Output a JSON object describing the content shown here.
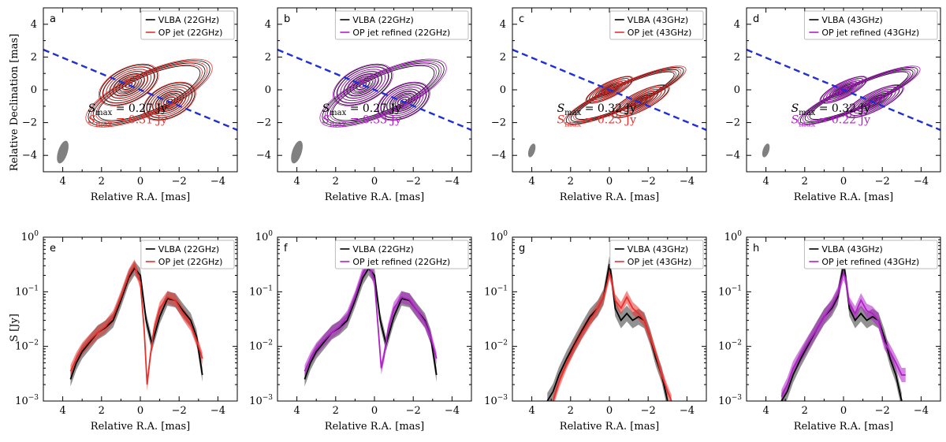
{
  "colors": {
    "black": "#000000",
    "red": "#e8312d",
    "purple": "#b020c8",
    "dashed": "#1f2fd6",
    "beam": "#808080"
  },
  "axis_labels": {
    "ra": "Relative R.A. [mas]",
    "dec": "Relative Declination [mas]",
    "flux": "S [Jy]"
  },
  "smax_prefix": "S",
  "smax_sub": "max",
  "chart_data": [
    {
      "panel": "a",
      "type": "contour",
      "xlim": [
        5,
        -5
      ],
      "ylim": [
        -5,
        5
      ],
      "xticks": [
        4,
        2,
        0,
        -2,
        -4
      ],
      "yticks": [
        -4,
        -2,
        0,
        2,
        4
      ],
      "freq": "22GHz",
      "color": "red",
      "legend": [
        "VLBA (22GHz)",
        "OP jet (22GHz)"
      ],
      "smax": [
        " = 0.27 Jy",
        " = 0.31 Jy"
      ],
      "beam": [
        4.0,
        -3.8
      ],
      "components": [
        [
          0.6,
          0.3
        ],
        [
          -1.5,
          -0.7
        ]
      ],
      "dashed_line": [
        [
          5,
          2.45
        ],
        [
          -5,
          -2.45
        ]
      ]
    },
    {
      "panel": "b",
      "type": "contour",
      "xlim": [
        5,
        -5
      ],
      "ylim": [
        -5,
        5
      ],
      "xticks": [
        4,
        2,
        0,
        -2,
        -4
      ],
      "yticks": [
        -4,
        -2,
        0,
        2,
        4
      ],
      "freq": "22GHz",
      "color": "purple",
      "legend": [
        "VLBA (22GHz)",
        "OP jet refined (22GHz)"
      ],
      "smax": [
        " = 0.27 Jy",
        " = 0.33 Jy"
      ],
      "beam": [
        4.0,
        -3.8
      ],
      "components": [
        [
          0.6,
          0.3
        ],
        [
          -1.5,
          -0.7
        ]
      ],
      "dashed_line": [
        [
          5,
          2.45
        ],
        [
          -5,
          -2.45
        ]
      ]
    },
    {
      "panel": "c",
      "type": "contour",
      "xlim": [
        5,
        -5
      ],
      "ylim": [
        -5,
        5
      ],
      "xticks": [
        4,
        2,
        0,
        -2,
        -4
      ],
      "yticks": [
        -4,
        -2,
        0,
        2,
        4
      ],
      "freq": "43GHz",
      "color": "red",
      "legend": [
        "VLBA (43GHz)",
        "OP jet (43GHz)"
      ],
      "smax": [
        " = 0.32 Jy",
        " = 0.23 Jy"
      ],
      "beam": [
        4.0,
        -3.7
      ],
      "components": [
        [
          0,
          0
        ],
        [
          -1.6,
          -0.7
        ]
      ],
      "dashed_line": [
        [
          5,
          2.45
        ],
        [
          -5,
          -2.45
        ]
      ]
    },
    {
      "panel": "d",
      "type": "contour",
      "xlim": [
        5,
        -5
      ],
      "ylim": [
        -5,
        5
      ],
      "xticks": [
        4,
        2,
        0,
        -2,
        -4
      ],
      "yticks": [
        -4,
        -2,
        0,
        2,
        4
      ],
      "freq": "43GHz",
      "color": "purple",
      "legend": [
        "VLBA (43GHz)",
        "OP jet refined (43GHz)"
      ],
      "smax": [
        " = 0.32 Jy",
        " = 0.22 Jy"
      ],
      "beam": [
        4.0,
        -3.7
      ],
      "components": [
        [
          0,
          0
        ],
        [
          -1.6,
          -0.7
        ]
      ],
      "dashed_line": [
        [
          5,
          2.45
        ],
        [
          -5,
          -2.45
        ]
      ]
    },
    {
      "panel": "e",
      "type": "line",
      "yscale": "log",
      "xlim": [
        5,
        -5
      ],
      "ylim": [
        0.001,
        1
      ],
      "xticks": [
        4,
        2,
        0,
        -2,
        -4
      ],
      "yticks": [
        "10^{-3}",
        "10^{-2}",
        "10^{-1}",
        "10^{0}"
      ],
      "color": "red",
      "legend": [
        "VLBA (22GHz)",
        "OP jet (22GHz)"
      ],
      "series": [
        {
          "name": "VLBA (22GHz)",
          "x": [
            3.6,
            3.3,
            3.0,
            2.6,
            2.2,
            1.8,
            1.4,
            1.0,
            0.6,
            0.3,
            0.0,
            -0.3,
            -0.6,
            -1.0,
            -1.4,
            -1.8,
            -2.2,
            -2.6,
            -2.9,
            -3.2
          ],
          "y": [
            0.0025,
            0.005,
            0.008,
            0.012,
            0.018,
            0.022,
            0.03,
            0.07,
            0.18,
            0.27,
            0.2,
            0.03,
            0.011,
            0.035,
            0.075,
            0.07,
            0.045,
            0.03,
            0.015,
            0.003
          ],
          "band": 0.35
        },
        {
          "name": "OP jet (22GHz)",
          "x": [
            3.6,
            3.3,
            3.0,
            2.6,
            2.2,
            1.8,
            1.4,
            1.0,
            0.6,
            0.3,
            0.0,
            -0.2,
            -0.35,
            -0.5,
            -0.7,
            -1.0,
            -1.4,
            -1.8,
            -2.2,
            -2.6,
            -2.9,
            -3.2
          ],
          "y": [
            0.0035,
            0.006,
            0.009,
            0.013,
            0.018,
            0.023,
            0.035,
            0.08,
            0.2,
            0.3,
            0.15,
            0.02,
            0.002,
            0.006,
            0.02,
            0.05,
            0.08,
            0.07,
            0.04,
            0.025,
            0.013,
            0.006
          ],
          "band": 0.3
        }
      ]
    },
    {
      "panel": "f",
      "type": "line",
      "yscale": "log",
      "xlim": [
        5,
        -5
      ],
      "ylim": [
        0.001,
        1
      ],
      "xticks": [
        4,
        2,
        0,
        -2,
        -4
      ],
      "yticks": [
        "10^{-3}",
        "10^{-2}",
        "10^{-1}",
        "10^{0}"
      ],
      "color": "purple",
      "legend": [
        "VLBA (22GHz)",
        "OP jet refined (22GHz)"
      ],
      "series": [
        {
          "name": "VLBA (22GHz)",
          "x": [
            3.6,
            3.3,
            3.0,
            2.6,
            2.2,
            1.8,
            1.4,
            1.0,
            0.6,
            0.3,
            0.0,
            -0.3,
            -0.6,
            -1.0,
            -1.4,
            -1.8,
            -2.2,
            -2.6,
            -2.9,
            -3.2
          ],
          "y": [
            0.0025,
            0.005,
            0.008,
            0.012,
            0.018,
            0.022,
            0.03,
            0.07,
            0.18,
            0.27,
            0.2,
            0.03,
            0.011,
            0.035,
            0.075,
            0.07,
            0.045,
            0.03,
            0.015,
            0.003
          ],
          "band": 0.35
        },
        {
          "name": "OP jet refined (22GHz)",
          "x": [
            3.6,
            3.3,
            3.0,
            2.6,
            2.2,
            1.8,
            1.4,
            1.0,
            0.6,
            0.3,
            0.0,
            -0.2,
            -0.35,
            -0.5,
            -0.7,
            -1.0,
            -1.4,
            -1.8,
            -2.2,
            -2.6,
            -2.9,
            -3.2
          ],
          "y": [
            0.0035,
            0.006,
            0.009,
            0.013,
            0.018,
            0.023,
            0.035,
            0.08,
            0.22,
            0.32,
            0.16,
            0.02,
            0.004,
            0.007,
            0.02,
            0.05,
            0.08,
            0.072,
            0.045,
            0.028,
            0.015,
            0.006
          ],
          "band": 0.3
        }
      ]
    },
    {
      "panel": "g",
      "type": "line",
      "yscale": "log",
      "xlim": [
        5,
        -5
      ],
      "ylim": [
        0.001,
        1
      ],
      "xticks": [
        4,
        2,
        0,
        -2,
        -4
      ],
      "yticks": [
        "10^{-3}",
        "10^{-2}",
        "10^{-1}",
        "10^{0}"
      ],
      "color": "red",
      "legend": [
        "VLBA (43GHz)",
        "OP jet (43GHz)"
      ],
      "series": [
        {
          "name": "VLBA (43GHz)",
          "x": [
            3.2,
            2.9,
            2.6,
            2.2,
            1.8,
            1.4,
            1.0,
            0.6,
            0.3,
            0.1,
            0.0,
            -0.1,
            -0.3,
            -0.6,
            -0.9,
            -1.2,
            -1.5,
            -1.8,
            -2.1,
            -2.4,
            -2.7,
            -3.0
          ],
          "y": [
            0.001,
            0.0015,
            0.003,
            0.006,
            0.011,
            0.02,
            0.035,
            0.05,
            0.08,
            0.2,
            0.32,
            0.2,
            0.05,
            0.03,
            0.04,
            0.03,
            0.035,
            0.03,
            0.015,
            0.006,
            0.003,
            0.001
          ],
          "band": 0.4
        },
        {
          "name": "OP jet (43GHz)",
          "x": [
            2.9,
            2.6,
            2.2,
            1.8,
            1.4,
            1.0,
            0.6,
            0.3,
            0.1,
            0.0,
            -0.1,
            -0.3,
            -0.6,
            -0.9,
            -1.2,
            -1.5,
            -1.8,
            -2.1,
            -2.4,
            -2.7,
            -3.0,
            -3.2
          ],
          "y": [
            0.001,
            0.0022,
            0.005,
            0.01,
            0.018,
            0.03,
            0.05,
            0.08,
            0.15,
            0.22,
            0.17,
            0.07,
            0.05,
            0.08,
            0.05,
            0.04,
            0.03,
            0.015,
            0.007,
            0.003,
            0.0015,
            0.001
          ],
          "band": 0.3
        }
      ]
    },
    {
      "panel": "h",
      "type": "line",
      "yscale": "log",
      "xlim": [
        5,
        -5
      ],
      "ylim": [
        0.001,
        1
      ],
      "xticks": [
        4,
        2,
        0,
        -2,
        -4
      ],
      "yticks": [
        "10^{-3}",
        "10^{-2}",
        "10^{-1}",
        "10^{0}"
      ],
      "color": "purple",
      "legend": [
        "VLBA (43GHz)",
        "OP jet refined (43GHz)"
      ],
      "series": [
        {
          "name": "VLBA (43GHz)",
          "x": [
            3.2,
            2.9,
            2.6,
            2.2,
            1.8,
            1.4,
            1.0,
            0.6,
            0.3,
            0.1,
            0.0,
            -0.1,
            -0.3,
            -0.6,
            -0.9,
            -1.2,
            -1.5,
            -1.8,
            -2.1,
            -2.4,
            -2.7,
            -3.0
          ],
          "y": [
            0.001,
            0.0015,
            0.003,
            0.006,
            0.011,
            0.02,
            0.035,
            0.05,
            0.08,
            0.2,
            0.32,
            0.2,
            0.05,
            0.03,
            0.04,
            0.03,
            0.035,
            0.03,
            0.015,
            0.006,
            0.003,
            0.001
          ],
          "band": 0.4
        },
        {
          "name": "OP jet refined (43GHz)",
          "x": [
            3.2,
            2.9,
            2.6,
            2.2,
            1.8,
            1.4,
            1.0,
            0.6,
            0.3,
            0.1,
            0.0,
            -0.1,
            -0.3,
            -0.6,
            -0.9,
            -1.2,
            -1.5,
            -1.8,
            -2.1,
            -2.4,
            -2.7,
            -3.0,
            -3.2
          ],
          "y": [
            0.0012,
            0.002,
            0.004,
            0.007,
            0.012,
            0.02,
            0.035,
            0.055,
            0.09,
            0.17,
            0.22,
            0.18,
            0.06,
            0.04,
            0.07,
            0.045,
            0.04,
            0.03,
            0.012,
            0.008,
            0.005,
            0.003,
            0.003
          ],
          "band": 0.35
        }
      ]
    }
  ]
}
